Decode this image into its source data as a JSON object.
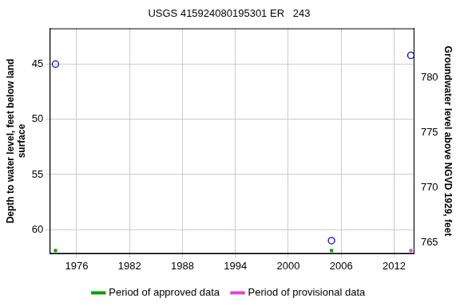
{
  "chart_data": {
    "type": "scatter",
    "title": "USGS 415924080195301 ER   243",
    "x_label": null,
    "y_label": [
      "Depth to water level, feet below land",
      "surface"
    ],
    "y2_label": "Groundwater level above NGVD 1929, feet",
    "x": [
      1973.6,
      2004.9,
      2013.9
    ],
    "values": [
      45.0,
      61.0,
      44.2
    ],
    "color": "#0000ff",
    "marker": "circle-open",
    "xlim": [
      1972.95,
      2014.3
    ],
    "xticks": [
      1976,
      1982,
      1988,
      1994,
      2000,
      2006,
      2012
    ],
    "ylim": [
      41.76,
      62.18
    ],
    "yticks": [
      45,
      50,
      55,
      60
    ],
    "y2lim": [
      764.02,
      784.44
    ],
    "y2ticks": [
      765,
      770,
      775,
      780
    ],
    "grid": true,
    "legend": "bottom",
    "series": [
      {
        "name": "Period of approved data",
        "color": "#00a000",
        "x": [
          1973.6,
          2004.9
        ]
      },
      {
        "name": "Period of provisional data",
        "color": "#e040e0",
        "x": [
          2013.9
        ]
      }
    ]
  }
}
